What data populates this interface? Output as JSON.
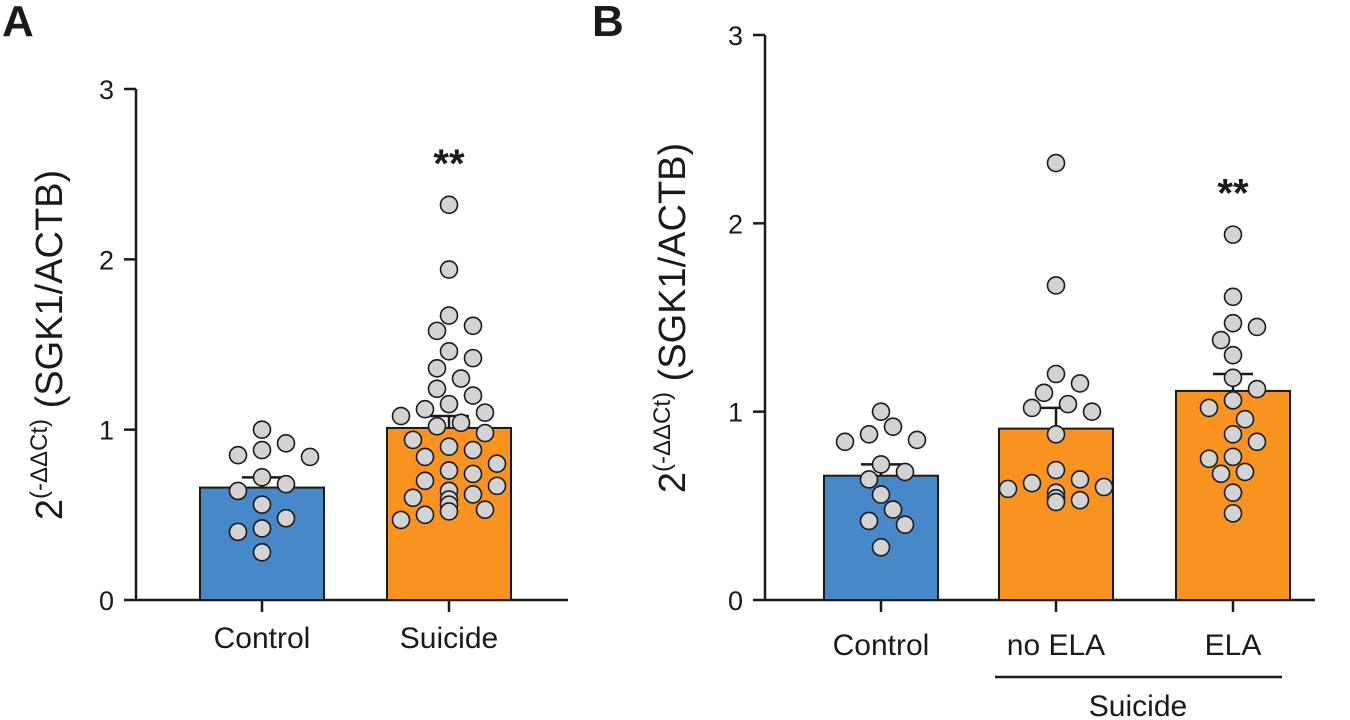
{
  "colors": {
    "control": "#4788c8",
    "suicide": "#f7931e",
    "point_fill": "#d3d3d3",
    "ink": "#1a1a1a"
  },
  "chart_data": [
    {
      "panel": "A",
      "type": "bar",
      "ylabel_base": "2",
      "ylabel_sup": "(-ΔΔCt)",
      "ylabel_rest": " (SGK1/ACTB)",
      "ylim": [
        0,
        3
      ],
      "yticks": [
        "0",
        "1",
        "2",
        "3"
      ],
      "categories": [
        "Control",
        "Suicide"
      ],
      "values": [
        0.66,
        1.01
      ],
      "sem": [
        0.06,
        0.07
      ],
      "fills": [
        "#4788c8",
        "#f7931e"
      ],
      "significance": [
        "",
        "**"
      ],
      "points": [
        [
          1.0,
          0.85,
          0.84,
          0.88,
          0.92,
          0.72,
          0.68,
          0.64,
          0.56,
          0.48,
          0.42,
          0.4,
          0.28
        ],
        [
          2.32,
          1.94,
          1.67,
          1.61,
          1.58,
          1.46,
          1.42,
          1.36,
          1.3,
          1.24,
          1.2,
          1.15,
          1.12,
          1.1,
          1.08,
          1.04,
          1.02,
          0.98,
          0.94,
          0.9,
          0.88,
          0.84,
          0.8,
          0.76,
          0.74,
          0.7,
          0.67,
          0.64,
          0.62,
          0.6,
          0.59,
          0.56,
          0.53,
          0.52,
          0.5,
          0.47
        ]
      ]
    },
    {
      "panel": "B",
      "type": "bar",
      "ylabel_base": "2",
      "ylabel_sup": "(-ΔΔCt)",
      "ylabel_rest": " (SGK1/ACTB)",
      "ylim": [
        0,
        3
      ],
      "yticks": [
        "0",
        "1",
        "2",
        "3"
      ],
      "categories": [
        "Control",
        "no ELA",
        "ELA"
      ],
      "group_label": "Suicide",
      "values": [
        0.66,
        0.91,
        1.11
      ],
      "sem": [
        0.06,
        0.11,
        0.09
      ],
      "fills": [
        "#4788c8",
        "#f7931e",
        "#f7931e"
      ],
      "significance": [
        "",
        "",
        "**"
      ],
      "points": [
        [
          1.0,
          0.85,
          0.84,
          0.88,
          0.92,
          0.72,
          0.68,
          0.64,
          0.56,
          0.48,
          0.42,
          0.4,
          0.28
        ],
        [
          2.32,
          1.67,
          1.2,
          1.15,
          1.1,
          1.04,
          1.02,
          1.0,
          0.88,
          0.69,
          0.64,
          0.62,
          0.6,
          0.59,
          0.57,
          0.54,
          0.53,
          0.52
        ],
        [
          1.94,
          1.61,
          1.47,
          1.45,
          1.38,
          1.3,
          1.18,
          1.12,
          1.06,
          1.02,
          0.96,
          0.88,
          0.84,
          0.76,
          0.75,
          0.68,
          0.67,
          0.57,
          0.46
        ]
      ]
    }
  ]
}
